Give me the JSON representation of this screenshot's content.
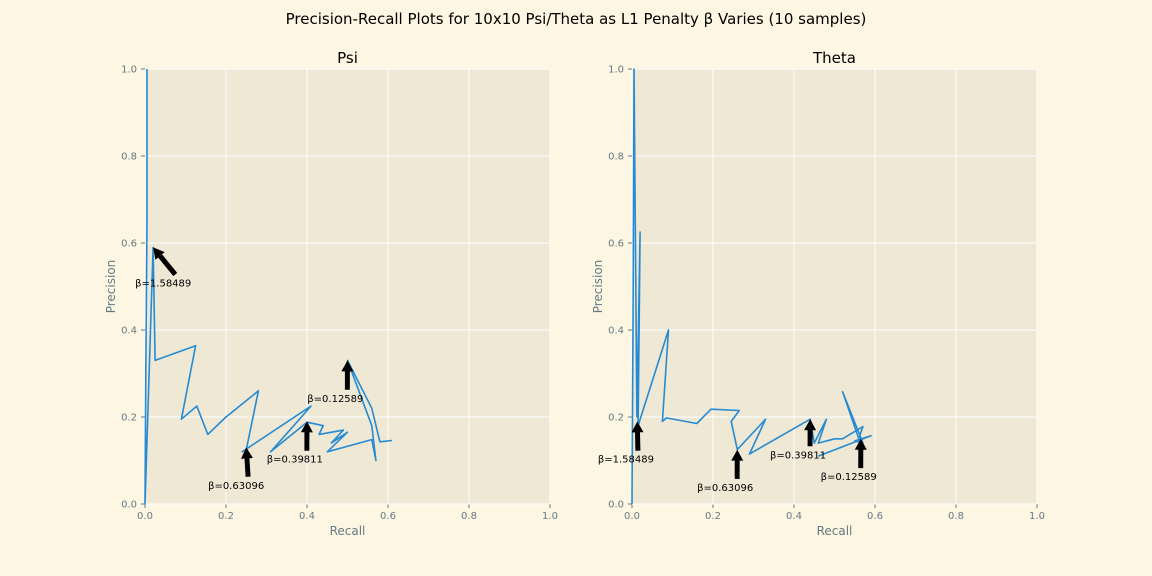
{
  "figure": {
    "title": "Precision-Recall Plots for 10x10 Psi/Theta as L1 Penalty β Varies (10 samples)",
    "background": "#fdf6e3",
    "axes_bg": "#eee8d5",
    "line_color": "#268bd2"
  },
  "chart_data": [
    {
      "type": "line",
      "title": "Psi",
      "xlabel": "Recall",
      "ylabel": "Precision",
      "xlim": [
        0,
        1
      ],
      "ylim": [
        0,
        1
      ],
      "xticks": [
        "0.0",
        "0.2",
        "0.4",
        "0.6",
        "0.8",
        "1.0"
      ],
      "yticks": [
        "0.0",
        "0.2",
        "0.4",
        "0.6",
        "0.8",
        "1.0"
      ],
      "grid": true,
      "series": [
        {
          "x": [
            0.005,
            0.005,
            0.002,
            0.0,
            0.02,
            0.025,
            0.125,
            0.09,
            0.128,
            0.155,
            0.2,
            0.28,
            0.25,
            0.24,
            0.41,
            0.31,
            0.4,
            0.44,
            0.43,
            0.49,
            0.46,
            0.5,
            0.45,
            0.56,
            0.57,
            0.56,
            0.5,
            0.56,
            0.58,
            0.61
          ],
          "y": [
            1.0,
            0.65,
            0.3,
            0.0,
            0.59,
            0.33,
            0.364,
            0.195,
            0.225,
            0.16,
            0.2,
            0.26,
            0.125,
            0.12,
            0.225,
            0.12,
            0.188,
            0.18,
            0.16,
            0.17,
            0.14,
            0.165,
            0.12,
            0.148,
            0.1,
            0.18,
            0.33,
            0.22,
            0.143,
            0.146
          ]
        }
      ],
      "annotations": [
        {
          "text": "β=1.58489",
          "xy": [
            0.02,
            0.59
          ],
          "xytext": [
            0.045,
            0.5
          ]
        },
        {
          "text": "β=0.63096",
          "xy": [
            0.25,
            0.13
          ],
          "xytext": [
            0.225,
            0.035
          ]
        },
        {
          "text": "β=0.39811",
          "xy": [
            0.4,
            0.19
          ],
          "xytext": [
            0.37,
            0.095
          ]
        },
        {
          "text": "β=0.12589",
          "xy": [
            0.5,
            0.33
          ],
          "xytext": [
            0.47,
            0.235
          ]
        }
      ]
    },
    {
      "type": "line",
      "title": "Theta",
      "xlabel": "Recall",
      "ylabel": "Precision",
      "xlim": [
        0,
        1
      ],
      "ylim": [
        0,
        1
      ],
      "xticks": [
        "0.0",
        "0.2",
        "0.4",
        "0.6",
        "0.8",
        "1.0"
      ],
      "yticks": [
        "0.0",
        "0.2",
        "0.4",
        "0.6",
        "0.8",
        "1.0"
      ],
      "grid": true,
      "series": [
        {
          "x": [
            0.0,
            0.003,
            0.005,
            0.012,
            0.02,
            0.015,
            0.09,
            0.075,
            0.085,
            0.16,
            0.195,
            0.265,
            0.245,
            0.26,
            0.33,
            0.29,
            0.44,
            0.45,
            0.48,
            0.46,
            0.5,
            0.52,
            0.57,
            0.56,
            0.52,
            0.57,
            0.55,
            0.59,
            0.46
          ],
          "y": [
            0.0,
            0.5,
            1.0,
            0.2,
            0.625,
            0.18,
            0.4,
            0.19,
            0.198,
            0.185,
            0.218,
            0.215,
            0.19,
            0.125,
            0.195,
            0.115,
            0.195,
            0.14,
            0.195,
            0.14,
            0.15,
            0.15,
            0.178,
            0.15,
            0.258,
            0.14,
            0.145,
            0.157,
            0.11
          ]
        }
      ],
      "annotations": [
        {
          "text": "β=1.58489",
          "xy": [
            0.013,
            0.19
          ],
          "xytext": [
            -0.015,
            0.095
          ]
        },
        {
          "text": "β=0.63096",
          "xy": [
            0.26,
            0.125
          ],
          "xytext": [
            0.23,
            0.03
          ]
        },
        {
          "text": "β=0.39811",
          "xy": [
            0.44,
            0.195
          ],
          "xytext": [
            0.41,
            0.105
          ]
        },
        {
          "text": "β=0.12589",
          "xy": [
            0.565,
            0.15
          ],
          "xytext": [
            0.535,
            0.055
          ]
        }
      ]
    }
  ]
}
